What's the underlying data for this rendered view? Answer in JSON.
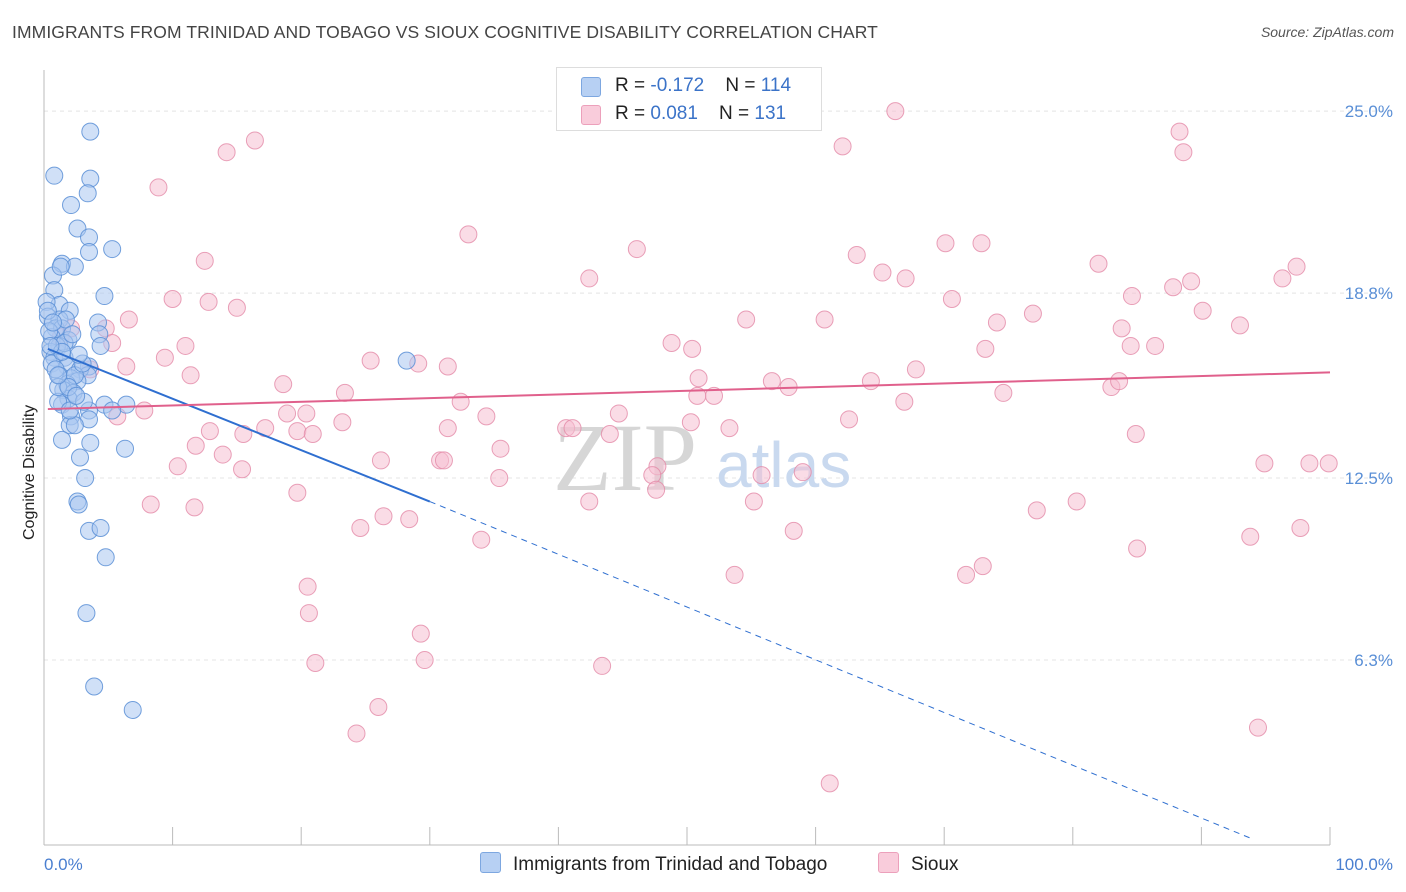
{
  "title": "IMMIGRANTS FROM TRINIDAD AND TOBAGO VS SIOUX COGNITIVE DISABILITY CORRELATION CHART",
  "source": "Source: ZipAtlas.com",
  "watermark": {
    "zip": "ZIP",
    "atlas": "atlas"
  },
  "legend": {
    "rows": [
      {
        "r_label": "R = ",
        "r_value": "-0.172",
        "n_label": "N = ",
        "n_value": "114"
      },
      {
        "r_label": "R = ",
        "r_value": "0.081",
        "n_label": "N = ",
        "n_value": "131"
      }
    ]
  },
  "bottom_legend": {
    "series1": "Immigrants from Trinidad and Tobago",
    "series2": "Sioux"
  },
  "colors": {
    "series1_fill": "#a9c7f0",
    "series1_stroke": "#5a8fd6",
    "series1_line": "#2f6fd0",
    "series2_fill": "#f6bfd1",
    "series2_stroke": "#e389a8",
    "series2_line": "#e0608c",
    "grid": "#e4e4e4",
    "axis": "#bbbbbb",
    "tick_label": "#5a8fd6"
  },
  "chart_data": {
    "type": "scatter",
    "title": "IMMIGRANTS FROM TRINIDAD AND TOBAGO VS SIOUX COGNITIVE DISABILITY CORRELATION CHART",
    "xlabel": "",
    "ylabel": "Cognitive Disability",
    "xlim": [
      0,
      100
    ],
    "ylim": [
      0,
      26.4
    ],
    "x_tick_labels": [
      "0.0%",
      "100.0%"
    ],
    "y_ticks": [
      6.3,
      12.5,
      18.8,
      25.0
    ],
    "y_tick_labels": [
      "6.3%",
      "12.5%",
      "18.8%",
      "25.0%"
    ],
    "grid": true,
    "legend_position": "top-center",
    "series": [
      {
        "name": "Immigrants from Trinidad and Tobago",
        "R": -0.172,
        "N": 114,
        "trend": {
          "x0": 0.3,
          "y0": 16.9,
          "x1": 30.0,
          "y1": 11.7,
          "dash_to_x": 94.0,
          "dash_to_y": 0.2
        },
        "points": [
          [
            3.6,
            24.3
          ],
          [
            0.8,
            22.8
          ],
          [
            3.6,
            22.7
          ],
          [
            3.4,
            22.2
          ],
          [
            2.1,
            21.8
          ],
          [
            2.6,
            21.0
          ],
          [
            3.5,
            20.7
          ],
          [
            5.3,
            20.3
          ],
          [
            3.5,
            20.2
          ],
          [
            1.4,
            19.8
          ],
          [
            2.4,
            19.7
          ],
          [
            0.7,
            19.4
          ],
          [
            1.3,
            19.7
          ],
          [
            0.8,
            18.9
          ],
          [
            4.7,
            18.7
          ],
          [
            1.2,
            18.4
          ],
          [
            0.2,
            18.5
          ],
          [
            2.0,
            18.2
          ],
          [
            0.3,
            18.0
          ],
          [
            1.2,
            17.9
          ],
          [
            4.2,
            17.8
          ],
          [
            0.9,
            17.6
          ],
          [
            1.4,
            17.6
          ],
          [
            4.3,
            17.4
          ],
          [
            0.6,
            17.3
          ],
          [
            1.9,
            17.2
          ],
          [
            1.2,
            17.0
          ],
          [
            4.4,
            17.0
          ],
          [
            0.5,
            16.8
          ],
          [
            0.8,
            16.6
          ],
          [
            1.6,
            16.6
          ],
          [
            0.6,
            16.4
          ],
          [
            3.5,
            16.3
          ],
          [
            1.8,
            16.3
          ],
          [
            2.8,
            16.2
          ],
          [
            1.2,
            16.0
          ],
          [
            3.4,
            16.0
          ],
          [
            2.1,
            15.9
          ],
          [
            2.6,
            15.8
          ],
          [
            1.8,
            15.7
          ],
          [
            1.5,
            15.5
          ],
          [
            2.3,
            15.4
          ],
          [
            1.9,
            15.2
          ],
          [
            1.4,
            15.0
          ],
          [
            1.1,
            15.1
          ],
          [
            4.7,
            15.0
          ],
          [
            6.4,
            15.0
          ],
          [
            3.5,
            14.8
          ],
          [
            5.3,
            14.8
          ],
          [
            2.1,
            14.6
          ],
          [
            3.5,
            14.5
          ],
          [
            2.0,
            14.3
          ],
          [
            2.4,
            14.3
          ],
          [
            1.4,
            13.8
          ],
          [
            3.6,
            13.7
          ],
          [
            6.3,
            13.5
          ],
          [
            2.8,
            13.2
          ],
          [
            3.2,
            12.5
          ],
          [
            2.6,
            11.7
          ],
          [
            2.7,
            11.6
          ],
          [
            3.5,
            10.7
          ],
          [
            4.4,
            10.8
          ],
          [
            4.8,
            9.8
          ],
          [
            3.3,
            7.9
          ],
          [
            3.9,
            5.4
          ],
          [
            6.9,
            4.6
          ],
          [
            28.2,
            16.5
          ],
          [
            1.1,
            15.6
          ],
          [
            2.4,
            16.0
          ],
          [
            1.7,
            17.9
          ],
          [
            0.4,
            17.5
          ],
          [
            1.0,
            17.0
          ],
          [
            2.0,
            14.8
          ],
          [
            3.0,
            16.4
          ],
          [
            0.3,
            18.2
          ],
          [
            0.9,
            16.2
          ],
          [
            1.6,
            17.1
          ],
          [
            2.2,
            17.4
          ],
          [
            1.4,
            16.8
          ],
          [
            0.7,
            17.8
          ],
          [
            3.1,
            15.1
          ],
          [
            1.9,
            15.6
          ],
          [
            2.7,
            16.7
          ],
          [
            1.1,
            16.0
          ],
          [
            0.5,
            17.0
          ],
          [
            2.5,
            15.3
          ]
        ]
      },
      {
        "name": "Sioux",
        "R": 0.081,
        "N": 131,
        "trend": {
          "x0": 0.3,
          "y0": 14.85,
          "x1": 100.0,
          "y1": 16.1
        },
        "points": [
          [
            66.2,
            25.0
          ],
          [
            88.3,
            24.3
          ],
          [
            16.4,
            24.0
          ],
          [
            14.2,
            23.6
          ],
          [
            88.6,
            23.6
          ],
          [
            62.1,
            23.8
          ],
          [
            8.9,
            22.4
          ],
          [
            33.0,
            20.8
          ],
          [
            46.1,
            20.3
          ],
          [
            70.1,
            20.5
          ],
          [
            72.9,
            20.5
          ],
          [
            63.2,
            20.1
          ],
          [
            12.5,
            19.9
          ],
          [
            82.0,
            19.8
          ],
          [
            65.2,
            19.5
          ],
          [
            97.4,
            19.7
          ],
          [
            67.0,
            19.3
          ],
          [
            42.4,
            19.3
          ],
          [
            96.3,
            19.3
          ],
          [
            87.8,
            19.0
          ],
          [
            89.2,
            19.2
          ],
          [
            10.0,
            18.6
          ],
          [
            12.8,
            18.5
          ],
          [
            70.6,
            18.6
          ],
          [
            84.6,
            18.7
          ],
          [
            15.0,
            18.3
          ],
          [
            76.9,
            18.1
          ],
          [
            90.1,
            18.2
          ],
          [
            54.6,
            17.9
          ],
          [
            60.7,
            17.9
          ],
          [
            74.1,
            17.8
          ],
          [
            83.8,
            17.6
          ],
          [
            93.0,
            17.7
          ],
          [
            6.6,
            17.9
          ],
          [
            4.8,
            17.6
          ],
          [
            2.1,
            17.6
          ],
          [
            1.3,
            17.3
          ],
          [
            5.3,
            17.1
          ],
          [
            11.0,
            17.0
          ],
          [
            48.8,
            17.1
          ],
          [
            50.4,
            16.9
          ],
          [
            73.2,
            16.9
          ],
          [
            84.5,
            17.0
          ],
          [
            86.4,
            17.0
          ],
          [
            9.4,
            16.6
          ],
          [
            25.4,
            16.5
          ],
          [
            29.1,
            16.4
          ],
          [
            31.4,
            16.3
          ],
          [
            67.8,
            16.2
          ],
          [
            6.4,
            16.3
          ],
          [
            3.6,
            16.2
          ],
          [
            11.4,
            16.0
          ],
          [
            50.9,
            15.9
          ],
          [
            56.6,
            15.8
          ],
          [
            64.3,
            15.8
          ],
          [
            74.6,
            15.4
          ],
          [
            83.0,
            15.6
          ],
          [
            23.4,
            15.4
          ],
          [
            52.1,
            15.3
          ],
          [
            66.9,
            15.1
          ],
          [
            32.4,
            15.1
          ],
          [
            7.8,
            14.8
          ],
          [
            18.9,
            14.7
          ],
          [
            20.4,
            14.7
          ],
          [
            34.4,
            14.6
          ],
          [
            44.7,
            14.7
          ],
          [
            5.7,
            14.6
          ],
          [
            23.2,
            14.4
          ],
          [
            40.6,
            14.2
          ],
          [
            41.1,
            14.2
          ],
          [
            50.3,
            14.4
          ],
          [
            62.6,
            14.5
          ],
          [
            12.9,
            14.1
          ],
          [
            17.2,
            14.2
          ],
          [
            19.7,
            14.1
          ],
          [
            20.9,
            14.0
          ],
          [
            31.4,
            14.2
          ],
          [
            53.3,
            14.2
          ],
          [
            84.9,
            14.0
          ],
          [
            15.5,
            14.0
          ],
          [
            11.8,
            13.6
          ],
          [
            35.5,
            13.5
          ],
          [
            13.9,
            13.3
          ],
          [
            26.2,
            13.1
          ],
          [
            30.8,
            13.1
          ],
          [
            47.7,
            12.9
          ],
          [
            59.0,
            12.7
          ],
          [
            94.9,
            13.0
          ],
          [
            98.4,
            13.0
          ],
          [
            99.9,
            13.0
          ],
          [
            10.4,
            12.9
          ],
          [
            15.4,
            12.8
          ],
          [
            35.4,
            12.5
          ],
          [
            47.3,
            12.6
          ],
          [
            55.8,
            12.6
          ],
          [
            47.6,
            12.1
          ],
          [
            19.7,
            12.0
          ],
          [
            42.4,
            11.7
          ],
          [
            55.2,
            11.7
          ],
          [
            80.3,
            11.7
          ],
          [
            8.3,
            11.6
          ],
          [
            11.7,
            11.5
          ],
          [
            77.2,
            11.4
          ],
          [
            26.4,
            11.2
          ],
          [
            28.4,
            11.1
          ],
          [
            24.6,
            10.8
          ],
          [
            58.3,
            10.7
          ],
          [
            97.7,
            10.8
          ],
          [
            93.8,
            10.5
          ],
          [
            34.0,
            10.4
          ],
          [
            85.0,
            10.1
          ],
          [
            53.7,
            9.2
          ],
          [
            73.0,
            9.5
          ],
          [
            71.7,
            9.2
          ],
          [
            20.5,
            8.8
          ],
          [
            20.6,
            7.9
          ],
          [
            29.3,
            7.2
          ],
          [
            29.6,
            6.3
          ],
          [
            21.1,
            6.2
          ],
          [
            43.4,
            6.1
          ],
          [
            26.0,
            4.7
          ],
          [
            24.3,
            3.8
          ],
          [
            94.4,
            4.0
          ],
          [
            61.1,
            2.1
          ],
          [
            50.8,
            15.3
          ],
          [
            83.6,
            15.8
          ],
          [
            31.1,
            13.1
          ],
          [
            18.6,
            15.7
          ],
          [
            44.0,
            14.0
          ],
          [
            57.9,
            15.6
          ]
        ]
      }
    ]
  }
}
